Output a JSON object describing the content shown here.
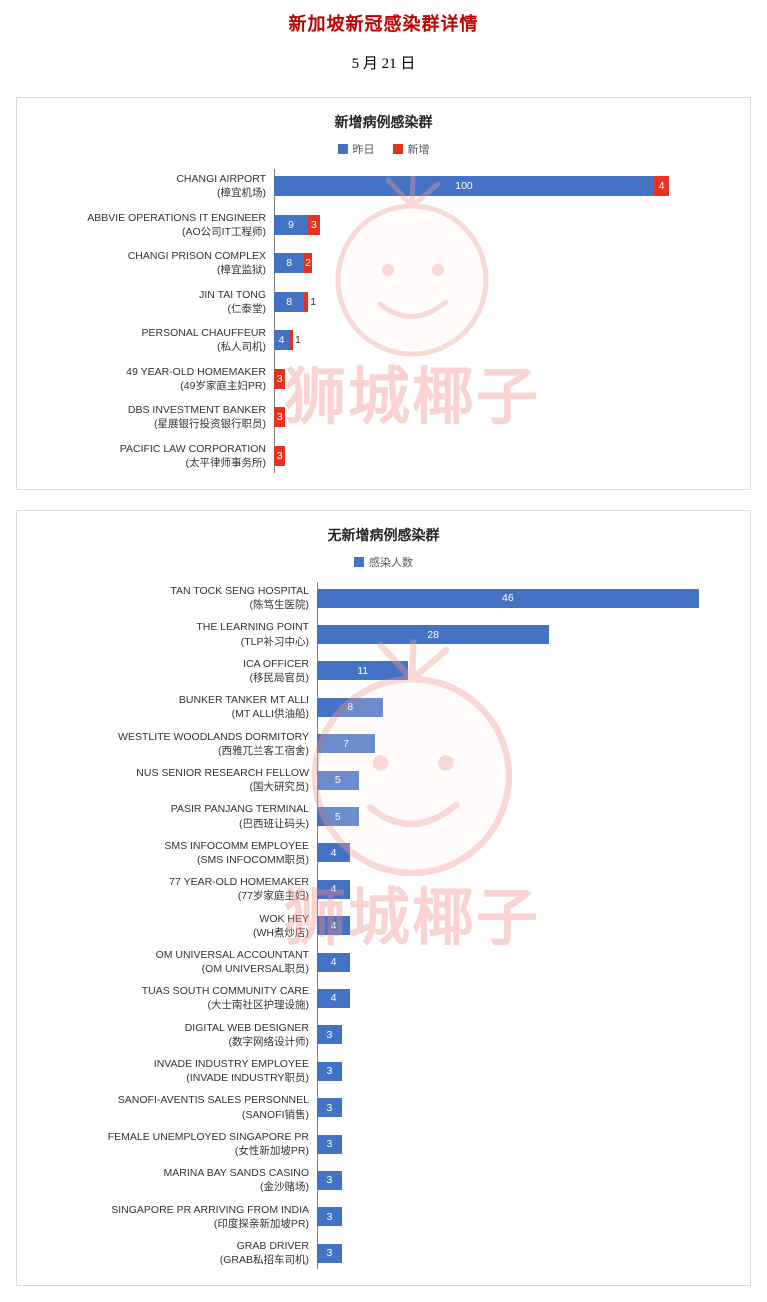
{
  "page": {
    "title": "新加坡新冠感染群详情",
    "date": "5 月 21 日",
    "watermark_text": "狮城椰子"
  },
  "colors": {
    "title": "#c00000",
    "bar_blue": "#4472c4",
    "bar_red": "#e8321f"
  },
  "chart_data": [
    {
      "type": "bar",
      "orientation": "horizontal",
      "title": "新增病例感染群",
      "legend_position": "top",
      "xlim": [
        0,
        110
      ],
      "grid": false,
      "categories": [
        {
          "en": "CHANGI AIRPORT",
          "zh": "(樟宜机场)"
        },
        {
          "en": "ABBVIE OPERATIONS IT ENGINEER",
          "zh": "(AO公司IT工程师)"
        },
        {
          "en": "CHANGI PRISON COMPLEX",
          "zh": "(樟宜监狱)"
        },
        {
          "en": "JIN TAI TONG",
          "zh": "(仁泰堂)"
        },
        {
          "en": "PERSONAL CHAUFFEUR",
          "zh": "(私人司机)"
        },
        {
          "en": "49 YEAR-OLD HOMEMAKER",
          "zh": "(49岁家庭主妇PR)"
        },
        {
          "en": "DBS INVESTMENT BANKER",
          "zh": "(星展银行投资银行职员)"
        },
        {
          "en": "PACIFIC LAW CORPORATION",
          "zh": "(太平律师事务所)"
        }
      ],
      "series": [
        {
          "key": "yesterday",
          "name": "昨日",
          "color": "#4472c4",
          "values": [
            100,
            9,
            8,
            8,
            4,
            0,
            0,
            0
          ]
        },
        {
          "key": "new",
          "name": "新增",
          "color": "#e8321f",
          "values": [
            4,
            3,
            2,
            1,
            1,
            3,
            3,
            3
          ]
        }
      ]
    },
    {
      "type": "bar",
      "orientation": "horizontal",
      "title": "无新增病例感染群",
      "legend_position": "top",
      "xlim": [
        0,
        50
      ],
      "grid": false,
      "categories": [
        {
          "en": "TAN TOCK SENG HOSPITAL",
          "zh": "(陈笃生医院)"
        },
        {
          "en": "THE LEARNING POINT",
          "zh": "(TLP补习中心)"
        },
        {
          "en": "ICA OFFICER",
          "zh": "(移民局官员)"
        },
        {
          "en": "BUNKER TANKER MT ALLI",
          "zh": "(MT ALLI供油船)"
        },
        {
          "en": "WESTLITE WOODLANDS DORMITORY",
          "zh": "(西雅兀兰客工宿舍)"
        },
        {
          "en": "NUS SENIOR RESEARCH FELLOW",
          "zh": "(国大研究员)"
        },
        {
          "en": "PASIR PANJANG TERMINAL",
          "zh": "(巴西班让码头)"
        },
        {
          "en": "SMS INFOCOMM EMPLOYEE",
          "zh": "(SMS INFOCOMM职员)"
        },
        {
          "en": "77 YEAR-OLD HOMEMAKER",
          "zh": "(77岁家庭主妇)"
        },
        {
          "en": "WOK HEY",
          "zh": "(WH煮炒店)"
        },
        {
          "en": "OM UNIVERSAL ACCOUNTANT",
          "zh": "(OM UNIVERSAL职员)"
        },
        {
          "en": "TUAS SOUTH COMMUNITY CARE",
          "zh": "(大士南社区护理设施)"
        },
        {
          "en": "DIGITAL WEB DESIGNER",
          "zh": "(数字网络设计师)"
        },
        {
          "en": "INVADE INDUSTRY EMPLOYEE",
          "zh": "(INVADE INDUSTRY职员)"
        },
        {
          "en": "SANOFI-AVENTIS SALES PERSONNEL",
          "zh": "(SANOFI销售)"
        },
        {
          "en": "FEMALE UNEMPLOYED SINGAPORE PR",
          "zh": "(女性新加坡PR)"
        },
        {
          "en": "MARINA BAY SANDS CASINO",
          "zh": "(金沙赌场)"
        },
        {
          "en": "SINGAPORE PR ARRIVING FROM INDIA",
          "zh": "(印度探亲新加坡PR)"
        },
        {
          "en": "GRAB DRIVER",
          "zh": "(GRAB私招车司机)"
        }
      ],
      "series": [
        {
          "key": "infected",
          "name": "感染人数",
          "color": "#4472c4",
          "values": [
            46,
            28,
            11,
            8,
            7,
            5,
            5,
            4,
            4,
            4,
            4,
            4,
            3,
            3,
            3,
            3,
            3,
            3,
            3
          ]
        }
      ]
    }
  ]
}
